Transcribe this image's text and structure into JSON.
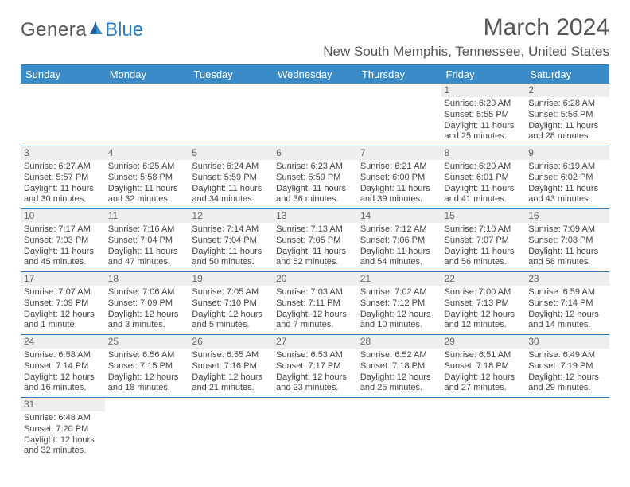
{
  "brand": {
    "part1": "Genera",
    "part2": "Blue"
  },
  "title": "March 2024",
  "location": "New South Memphis, Tennessee, United States",
  "colors": {
    "header_bg": "#3b8bc9",
    "header_text": "#ffffff",
    "rule": "#2b7bbf",
    "daynum_bg": "#eeeeee",
    "text": "#444444",
    "brand_blue": "#2b7bbf"
  },
  "weekdays": [
    "Sunday",
    "Monday",
    "Tuesday",
    "Wednesday",
    "Thursday",
    "Friday",
    "Saturday"
  ],
  "weeks": [
    [
      {
        "day": "",
        "sunrise": "",
        "sunset": "",
        "daylight1": "",
        "daylight2": ""
      },
      {
        "day": "",
        "sunrise": "",
        "sunset": "",
        "daylight1": "",
        "daylight2": ""
      },
      {
        "day": "",
        "sunrise": "",
        "sunset": "",
        "daylight1": "",
        "daylight2": ""
      },
      {
        "day": "",
        "sunrise": "",
        "sunset": "",
        "daylight1": "",
        "daylight2": ""
      },
      {
        "day": "",
        "sunrise": "",
        "sunset": "",
        "daylight1": "",
        "daylight2": ""
      },
      {
        "day": "1",
        "sunrise": "Sunrise: 6:29 AM",
        "sunset": "Sunset: 5:55 PM",
        "daylight1": "Daylight: 11 hours",
        "daylight2": "and 25 minutes."
      },
      {
        "day": "2",
        "sunrise": "Sunrise: 6:28 AM",
        "sunset": "Sunset: 5:56 PM",
        "daylight1": "Daylight: 11 hours",
        "daylight2": "and 28 minutes."
      }
    ],
    [
      {
        "day": "3",
        "sunrise": "Sunrise: 6:27 AM",
        "sunset": "Sunset: 5:57 PM",
        "daylight1": "Daylight: 11 hours",
        "daylight2": "and 30 minutes."
      },
      {
        "day": "4",
        "sunrise": "Sunrise: 6:25 AM",
        "sunset": "Sunset: 5:58 PM",
        "daylight1": "Daylight: 11 hours",
        "daylight2": "and 32 minutes."
      },
      {
        "day": "5",
        "sunrise": "Sunrise: 6:24 AM",
        "sunset": "Sunset: 5:59 PM",
        "daylight1": "Daylight: 11 hours",
        "daylight2": "and 34 minutes."
      },
      {
        "day": "6",
        "sunrise": "Sunrise: 6:23 AM",
        "sunset": "Sunset: 5:59 PM",
        "daylight1": "Daylight: 11 hours",
        "daylight2": "and 36 minutes."
      },
      {
        "day": "7",
        "sunrise": "Sunrise: 6:21 AM",
        "sunset": "Sunset: 6:00 PM",
        "daylight1": "Daylight: 11 hours",
        "daylight2": "and 39 minutes."
      },
      {
        "day": "8",
        "sunrise": "Sunrise: 6:20 AM",
        "sunset": "Sunset: 6:01 PM",
        "daylight1": "Daylight: 11 hours",
        "daylight2": "and 41 minutes."
      },
      {
        "day": "9",
        "sunrise": "Sunrise: 6:19 AM",
        "sunset": "Sunset: 6:02 PM",
        "daylight1": "Daylight: 11 hours",
        "daylight2": "and 43 minutes."
      }
    ],
    [
      {
        "day": "10",
        "sunrise": "Sunrise: 7:17 AM",
        "sunset": "Sunset: 7:03 PM",
        "daylight1": "Daylight: 11 hours",
        "daylight2": "and 45 minutes."
      },
      {
        "day": "11",
        "sunrise": "Sunrise: 7:16 AM",
        "sunset": "Sunset: 7:04 PM",
        "daylight1": "Daylight: 11 hours",
        "daylight2": "and 47 minutes."
      },
      {
        "day": "12",
        "sunrise": "Sunrise: 7:14 AM",
        "sunset": "Sunset: 7:04 PM",
        "daylight1": "Daylight: 11 hours",
        "daylight2": "and 50 minutes."
      },
      {
        "day": "13",
        "sunrise": "Sunrise: 7:13 AM",
        "sunset": "Sunset: 7:05 PM",
        "daylight1": "Daylight: 11 hours",
        "daylight2": "and 52 minutes."
      },
      {
        "day": "14",
        "sunrise": "Sunrise: 7:12 AM",
        "sunset": "Sunset: 7:06 PM",
        "daylight1": "Daylight: 11 hours",
        "daylight2": "and 54 minutes."
      },
      {
        "day": "15",
        "sunrise": "Sunrise: 7:10 AM",
        "sunset": "Sunset: 7:07 PM",
        "daylight1": "Daylight: 11 hours",
        "daylight2": "and 56 minutes."
      },
      {
        "day": "16",
        "sunrise": "Sunrise: 7:09 AM",
        "sunset": "Sunset: 7:08 PM",
        "daylight1": "Daylight: 11 hours",
        "daylight2": "and 58 minutes."
      }
    ],
    [
      {
        "day": "17",
        "sunrise": "Sunrise: 7:07 AM",
        "sunset": "Sunset: 7:09 PM",
        "daylight1": "Daylight: 12 hours",
        "daylight2": "and 1 minute."
      },
      {
        "day": "18",
        "sunrise": "Sunrise: 7:06 AM",
        "sunset": "Sunset: 7:09 PM",
        "daylight1": "Daylight: 12 hours",
        "daylight2": "and 3 minutes."
      },
      {
        "day": "19",
        "sunrise": "Sunrise: 7:05 AM",
        "sunset": "Sunset: 7:10 PM",
        "daylight1": "Daylight: 12 hours",
        "daylight2": "and 5 minutes."
      },
      {
        "day": "20",
        "sunrise": "Sunrise: 7:03 AM",
        "sunset": "Sunset: 7:11 PM",
        "daylight1": "Daylight: 12 hours",
        "daylight2": "and 7 minutes."
      },
      {
        "day": "21",
        "sunrise": "Sunrise: 7:02 AM",
        "sunset": "Sunset: 7:12 PM",
        "daylight1": "Daylight: 12 hours",
        "daylight2": "and 10 minutes."
      },
      {
        "day": "22",
        "sunrise": "Sunrise: 7:00 AM",
        "sunset": "Sunset: 7:13 PM",
        "daylight1": "Daylight: 12 hours",
        "daylight2": "and 12 minutes."
      },
      {
        "day": "23",
        "sunrise": "Sunrise: 6:59 AM",
        "sunset": "Sunset: 7:14 PM",
        "daylight1": "Daylight: 12 hours",
        "daylight2": "and 14 minutes."
      }
    ],
    [
      {
        "day": "24",
        "sunrise": "Sunrise: 6:58 AM",
        "sunset": "Sunset: 7:14 PM",
        "daylight1": "Daylight: 12 hours",
        "daylight2": "and 16 minutes."
      },
      {
        "day": "25",
        "sunrise": "Sunrise: 6:56 AM",
        "sunset": "Sunset: 7:15 PM",
        "daylight1": "Daylight: 12 hours",
        "daylight2": "and 18 minutes."
      },
      {
        "day": "26",
        "sunrise": "Sunrise: 6:55 AM",
        "sunset": "Sunset: 7:16 PM",
        "daylight1": "Daylight: 12 hours",
        "daylight2": "and 21 minutes."
      },
      {
        "day": "27",
        "sunrise": "Sunrise: 6:53 AM",
        "sunset": "Sunset: 7:17 PM",
        "daylight1": "Daylight: 12 hours",
        "daylight2": "and 23 minutes."
      },
      {
        "day": "28",
        "sunrise": "Sunrise: 6:52 AM",
        "sunset": "Sunset: 7:18 PM",
        "daylight1": "Daylight: 12 hours",
        "daylight2": "and 25 minutes."
      },
      {
        "day": "29",
        "sunrise": "Sunrise: 6:51 AM",
        "sunset": "Sunset: 7:18 PM",
        "daylight1": "Daylight: 12 hours",
        "daylight2": "and 27 minutes."
      },
      {
        "day": "30",
        "sunrise": "Sunrise: 6:49 AM",
        "sunset": "Sunset: 7:19 PM",
        "daylight1": "Daylight: 12 hours",
        "daylight2": "and 29 minutes."
      }
    ],
    [
      {
        "day": "31",
        "sunrise": "Sunrise: 6:48 AM",
        "sunset": "Sunset: 7:20 PM",
        "daylight1": "Daylight: 12 hours",
        "daylight2": "and 32 minutes."
      },
      {
        "day": "",
        "sunrise": "",
        "sunset": "",
        "daylight1": "",
        "daylight2": ""
      },
      {
        "day": "",
        "sunrise": "",
        "sunset": "",
        "daylight1": "",
        "daylight2": ""
      },
      {
        "day": "",
        "sunrise": "",
        "sunset": "",
        "daylight1": "",
        "daylight2": ""
      },
      {
        "day": "",
        "sunrise": "",
        "sunset": "",
        "daylight1": "",
        "daylight2": ""
      },
      {
        "day": "",
        "sunrise": "",
        "sunset": "",
        "daylight1": "",
        "daylight2": ""
      },
      {
        "day": "",
        "sunrise": "",
        "sunset": "",
        "daylight1": "",
        "daylight2": ""
      }
    ]
  ]
}
